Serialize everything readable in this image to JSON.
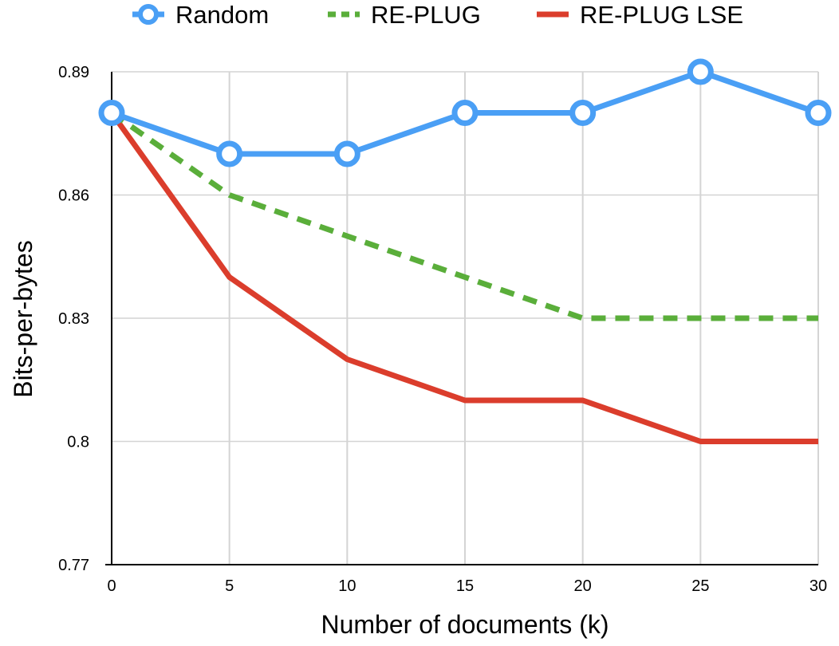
{
  "chart_data": {
    "type": "line",
    "x": [
      0,
      5,
      10,
      15,
      20,
      25,
      30
    ],
    "xlabel": "Number of documents (k)",
    "ylabel": "Bits-per-bytes",
    "xlim": [
      0,
      30
    ],
    "ylim": [
      0.77,
      0.89
    ],
    "xticks": [
      "0",
      "5",
      "10",
      "15",
      "20",
      "25",
      "30"
    ],
    "yticks": [
      "0.77",
      "0.8",
      "0.83",
      "0.86",
      "0.89"
    ],
    "grid": true,
    "legend_position": "top",
    "series": [
      {
        "name": "Random",
        "values": [
          0.88,
          0.87,
          0.87,
          0.88,
          0.88,
          0.89,
          0.88
        ],
        "color": "#4a9ff5",
        "style": "solid-markers"
      },
      {
        "name": "RE-PLUG",
        "values": [
          0.88,
          0.86,
          0.85,
          0.84,
          0.83,
          0.83,
          0.83
        ],
        "color": "#5aae3a",
        "style": "dashed"
      },
      {
        "name": "RE-PLUG LSE",
        "values": [
          0.88,
          0.84,
          0.82,
          0.81,
          0.81,
          0.8,
          0.8
        ],
        "color": "#db3d2c",
        "style": "solid"
      }
    ]
  }
}
